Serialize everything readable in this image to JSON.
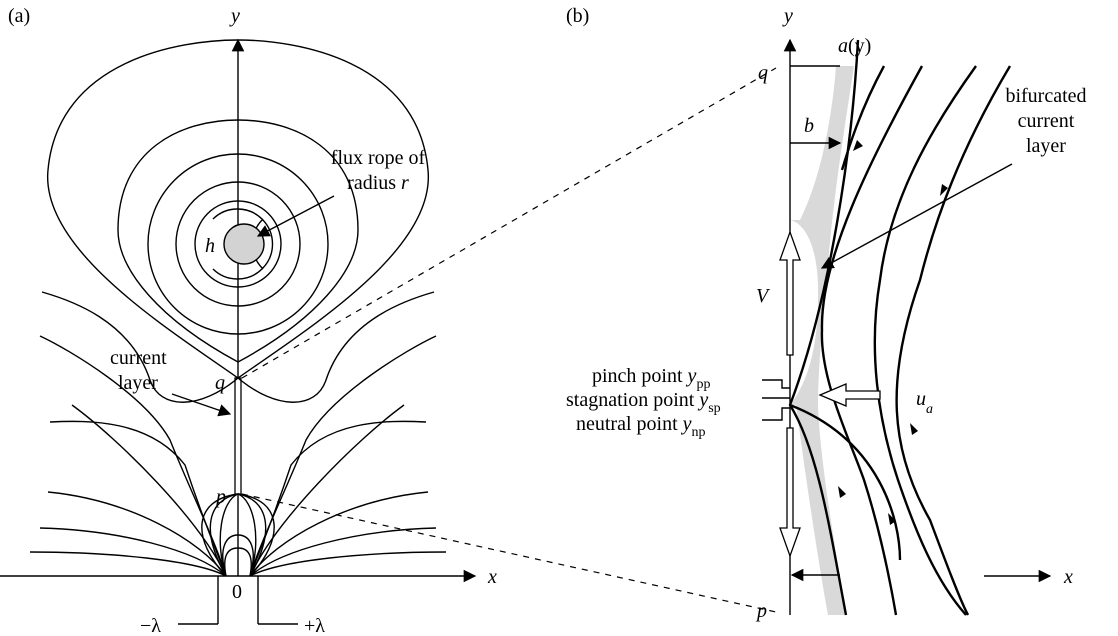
{
  "panel_a": {
    "tag": "(a)",
    "axis_y": "y",
    "axis_x": "x",
    "origin": "0",
    "rope_label_1": "flux rope of",
    "rope_label_2": "radius ",
    "rope_label_r": "r",
    "h": "h",
    "current_1": "current",
    "current_2": "layer",
    "q": "q",
    "p": "p",
    "minus_lambda": "−λ",
    "plus_lambda": "+λ"
  },
  "panel_b": {
    "tag": "(b)",
    "axis_y": "y",
    "axis_x": "x",
    "q": "q",
    "p": "p",
    "a_label": "a",
    "a_arg": "(y)",
    "b": "b",
    "bif_1": "bifurcated",
    "bif_2": "current",
    "bif_3": "layer",
    "V": "V",
    "pinch": "pinch point ",
    "pinch_y": "y",
    "pinch_sub": "pp",
    "stag": "stagnation point ",
    "stag_y": "y",
    "stag_sub": "sp",
    "neutral": "neutral point ",
    "neutral_y": "y",
    "neutral_sub": "np",
    "u": "u",
    "u_sub": "a"
  },
  "colors": {
    "ink": "#000000",
    "rope_fill": "#d3d3d3",
    "layer_fill": "#d9d9d9"
  }
}
